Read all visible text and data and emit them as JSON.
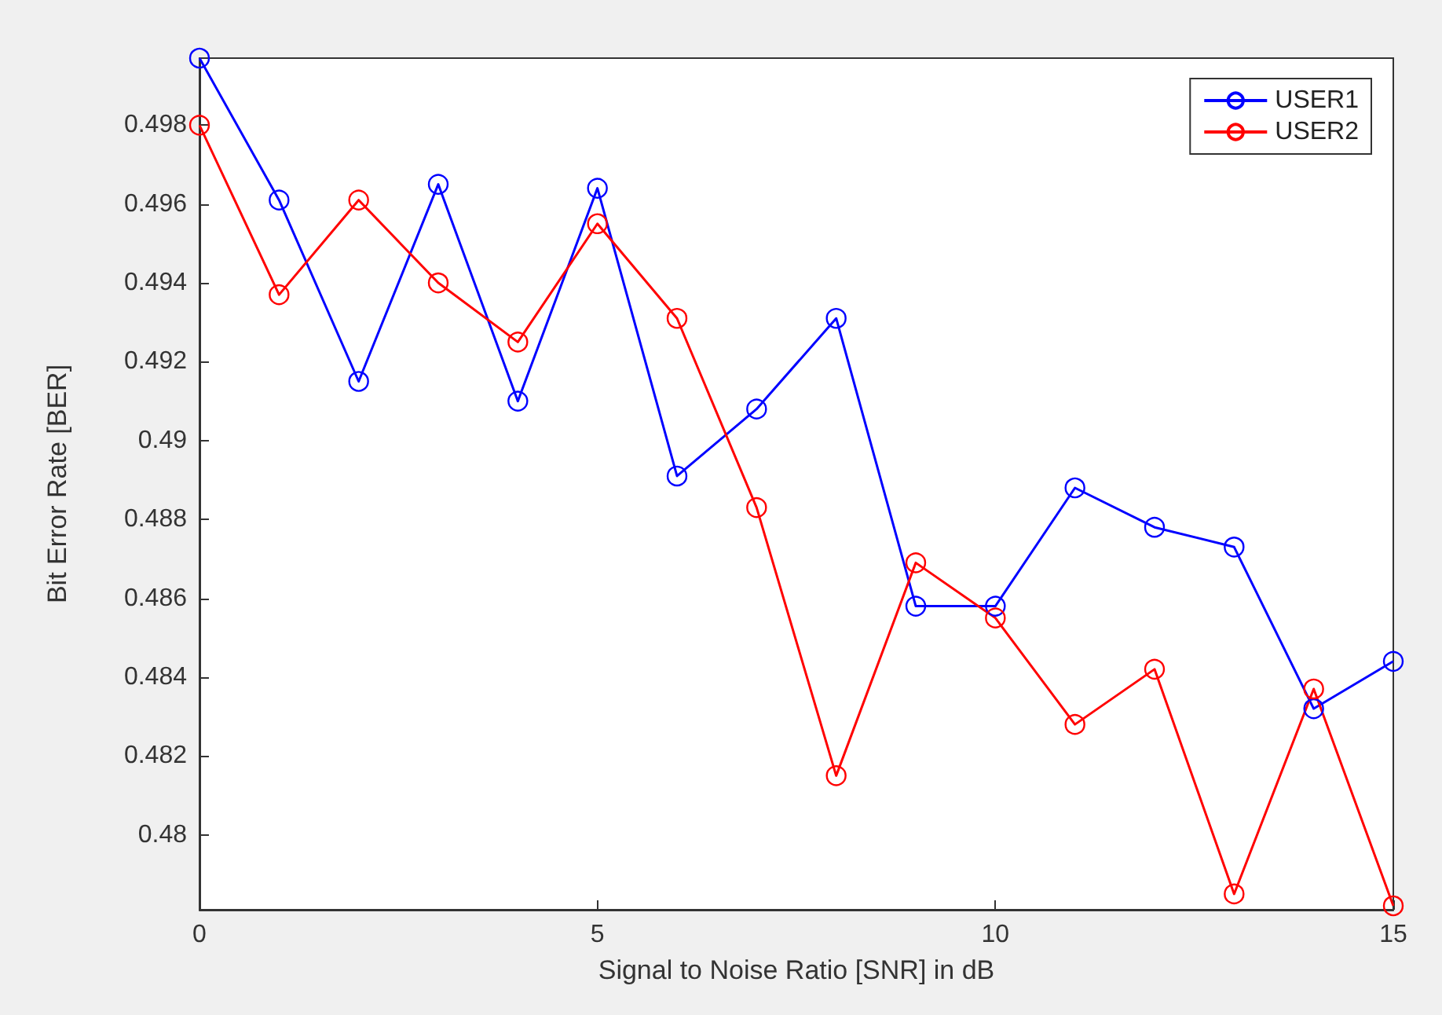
{
  "chart_data": {
    "type": "line",
    "xlabel": "Signal to Noise Ratio [SNR] in dB",
    "ylabel": "Bit Error Rate [BER]",
    "x": [
      0,
      1,
      2,
      3,
      4,
      5,
      6,
      7,
      8,
      9,
      10,
      11,
      12,
      13,
      14,
      15
    ],
    "xlim": [
      0,
      15
    ],
    "xticks": [
      0,
      5,
      10,
      15
    ],
    "ylim": [
      0.4781,
      0.4997
    ],
    "yticks": [
      0.48,
      0.482,
      0.484,
      0.486,
      0.488,
      0.49,
      0.492,
      0.494,
      0.496,
      0.498
    ],
    "series": [
      {
        "name": "USER1",
        "color": "#0000ff",
        "values": [
          0.4997,
          0.4961,
          0.4915,
          0.4965,
          0.491,
          0.4964,
          0.4891,
          0.4908,
          0.4931,
          0.4858,
          0.4858,
          0.4888,
          0.4878,
          0.4873,
          0.4832,
          0.4844
        ]
      },
      {
        "name": "USER2",
        "color": "#ff0000",
        "values": [
          0.498,
          0.4937,
          0.4961,
          0.494,
          0.4925,
          0.4955,
          0.4931,
          0.4883,
          0.4815,
          0.4869,
          0.4855,
          0.4828,
          0.4842,
          0.4785,
          0.4837,
          0.4782
        ]
      }
    ],
    "marker": "circle",
    "line_style": "solid",
    "legend": "top right",
    "grid": false
  }
}
